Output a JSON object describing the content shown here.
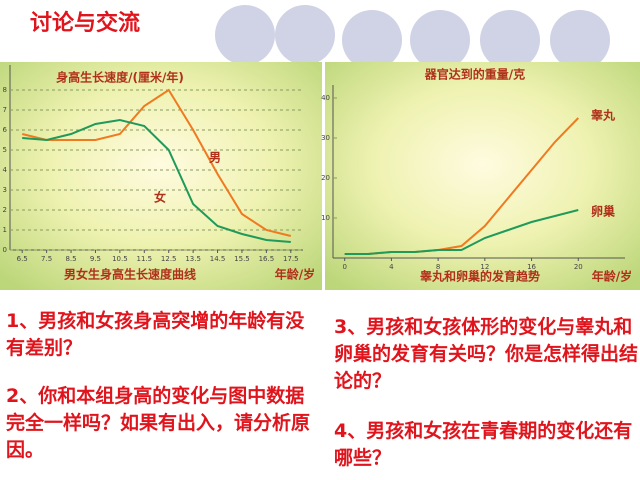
{
  "title": "讨论与交流",
  "chart_data": [
    {
      "type": "line",
      "title": "身高生长速度/(厘米/年)",
      "x_label": "年龄/岁",
      "caption": "男女生身高生长速度曲线",
      "x": [
        6.5,
        7.5,
        8.5,
        9.5,
        10.5,
        11.5,
        12.5,
        13.5,
        14.5,
        15.5,
        16.5,
        17.5
      ],
      "series": [
        {
          "name": "男",
          "color": "#f07a20",
          "values": [
            5.8,
            5.5,
            5.5,
            5.5,
            5.8,
            7.2,
            8.0,
            6.0,
            3.8,
            1.8,
            1.0,
            0.7
          ]
        },
        {
          "name": "女",
          "color": "#1f9a5a",
          "values": [
            5.6,
            5.5,
            5.8,
            6.3,
            6.5,
            6.2,
            5.0,
            2.3,
            1.2,
            0.8,
            0.5,
            0.4
          ]
        }
      ],
      "xlim": [
        6,
        18
      ],
      "xticks": [
        6.5,
        7.5,
        8.5,
        9.5,
        10.5,
        11.5,
        12.5,
        13.5,
        14.5,
        15.5,
        16.5,
        17.5
      ],
      "ylim": [
        0,
        9
      ],
      "yticks": [
        0,
        1,
        2,
        3,
        4,
        5,
        6,
        7,
        8
      ],
      "grid": true
    },
    {
      "type": "line",
      "title": "器官达到的重量/克",
      "x_label": "年龄/岁",
      "caption": "睾丸和卵巢的发育趋势",
      "x": [
        0,
        2,
        4,
        6,
        8,
        10,
        12,
        14,
        16,
        18,
        20
      ],
      "series": [
        {
          "name": "睾丸",
          "color": "#f07a20",
          "values": [
            1,
            1,
            1.5,
            1.5,
            2,
            3,
            8,
            15,
            22,
            29,
            35
          ]
        },
        {
          "name": "卵巢",
          "color": "#1f9a5a",
          "values": [
            1,
            1,
            1.5,
            1.5,
            2,
            2,
            5,
            7,
            9,
            10.5,
            12
          ]
        }
      ],
      "xlim": [
        -1,
        24
      ],
      "xticks": [
        0,
        4,
        8,
        12,
        16,
        20
      ],
      "ylim": [
        0,
        42
      ],
      "yticks": [
        10,
        20,
        30,
        40
      ],
      "grid": false
    }
  ],
  "questions": [
    "1、男孩和女孩身高突增的年龄有没有差别？",
    "2、你和本组身高的变化与图中数据完全一样吗？如果有出入，请分析原因。",
    "3、男孩和女孩体形的变化与睾丸和卵巢的发育有关吗？你是怎样得出结论的？",
    "4、男孩和女孩在青春期的变化还有哪些？"
  ]
}
